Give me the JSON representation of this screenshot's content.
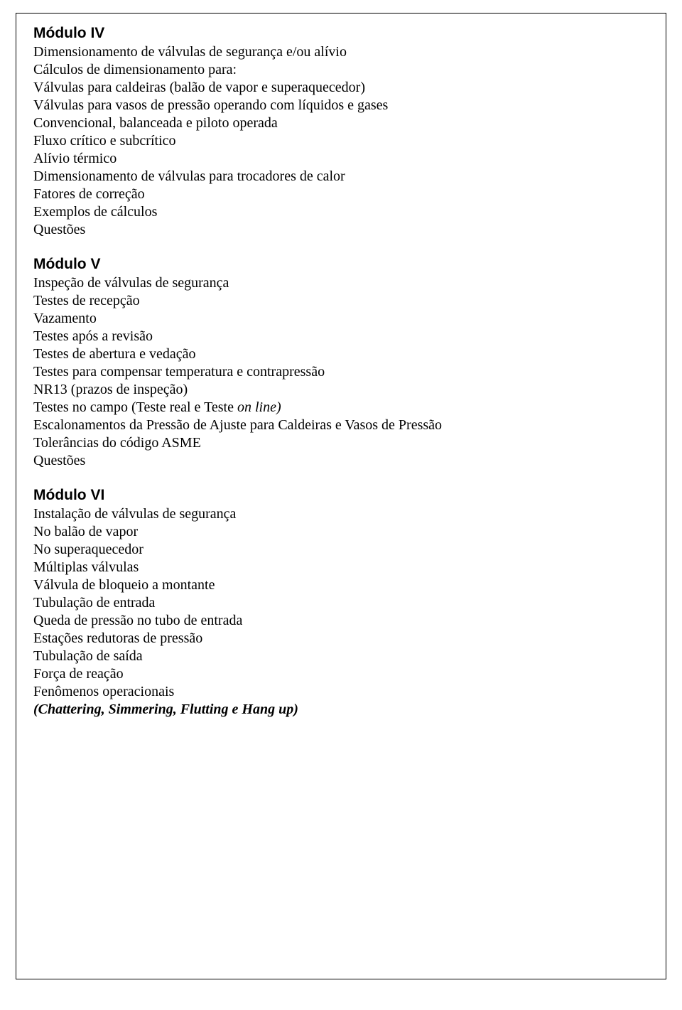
{
  "modules": [
    {
      "heading": "Módulo IV",
      "lines": [
        {
          "text": "Dimensionamento de válvulas de segurança e/ou alívio"
        },
        {
          "text": "Cálculos de dimensionamento para:"
        },
        {
          "text": "Válvulas para caldeiras (balão de vapor e superaquecedor)"
        },
        {
          "text": "Válvulas para vasos de pressão operando com líquidos e gases"
        },
        {
          "text": "Convencional, balanceada e piloto operada"
        },
        {
          "text": "Fluxo crítico e subcrítico"
        },
        {
          "text": "Alívio térmico"
        },
        {
          "text": "Dimensionamento de válvulas para trocadores de calor"
        },
        {
          "text": "Fatores de correção"
        },
        {
          "text": "Exemplos de cálculos"
        },
        {
          "text": "Questões"
        }
      ]
    },
    {
      "heading": "Módulo V",
      "lines": [
        {
          "text": "Inspeção de válvulas de segurança"
        },
        {
          "text": "Testes de recepção"
        },
        {
          "text": "Vazamento"
        },
        {
          "text": "Testes após a revisão"
        },
        {
          "text": "Testes de abertura e vedação"
        },
        {
          "text": "Testes para compensar temperatura e contrapressão"
        },
        {
          "text": "NR13 (prazos de inspeção)"
        },
        {
          "prefix": "Testes no campo (Teste real e Teste ",
          "italic": "on line)",
          "suffix": ""
        },
        {
          "text": "Escalonamentos da Pressão de Ajuste para Caldeiras e Vasos de Pressão"
        },
        {
          "text": "Tolerâncias do código ASME"
        },
        {
          "text": "Questões"
        }
      ]
    },
    {
      "heading": "Módulo VI",
      "lines": [
        {
          "text": "Instalação de válvulas de segurança"
        },
        {
          "text": "No balão de vapor"
        },
        {
          "text": "No superaquecedor"
        },
        {
          "text": "Múltiplas válvulas"
        },
        {
          "text": "Válvula de bloqueio a montante"
        },
        {
          "text": "Tubulação de entrada"
        },
        {
          "text": "Queda de pressão no tubo de entrada"
        },
        {
          "text": "Estações redutoras de pressão"
        },
        {
          "text": "Tubulação de saída"
        },
        {
          "text": "Força de reação"
        },
        {
          "text": "Fenômenos operacionais"
        },
        {
          "boldItalic": "(Chattering, Simmering, Flutting e Hang up)"
        }
      ]
    }
  ]
}
